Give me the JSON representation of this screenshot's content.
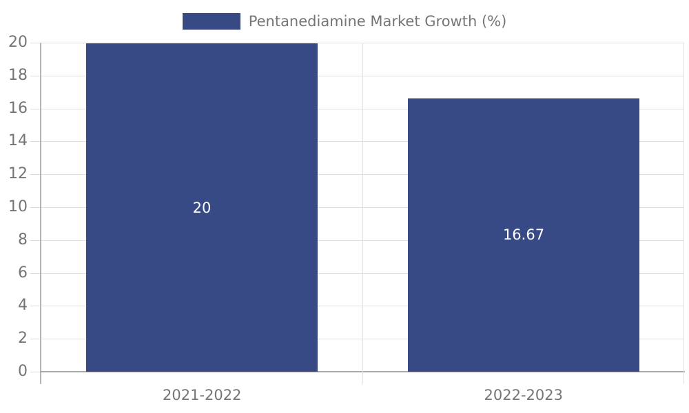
{
  "chart_data": {
    "type": "bar",
    "title": "Pentanediamine Market Growth (%)",
    "categories": [
      "2021-2022",
      "2022-2023"
    ],
    "values": [
      20,
      16.67
    ],
    "value_labels": [
      "20",
      "16.67"
    ],
    "ylim": [
      0,
      20
    ],
    "ytick_step": 2,
    "yticks": [
      0,
      2,
      4,
      6,
      8,
      10,
      12,
      14,
      16,
      18,
      20
    ],
    "grid": true,
    "legend_position": "top-center",
    "colors": {
      "bar": "#374a85",
      "axis_label": "#757575",
      "legend_text": "#757575",
      "gridline": "#e0e0e0",
      "tick": "#dcdcdc",
      "y_axis_line": "#b5b5b5",
      "x_axis_line": "#a8a8a8",
      "value_label": "#ffffff",
      "background": "#ffffff"
    }
  }
}
